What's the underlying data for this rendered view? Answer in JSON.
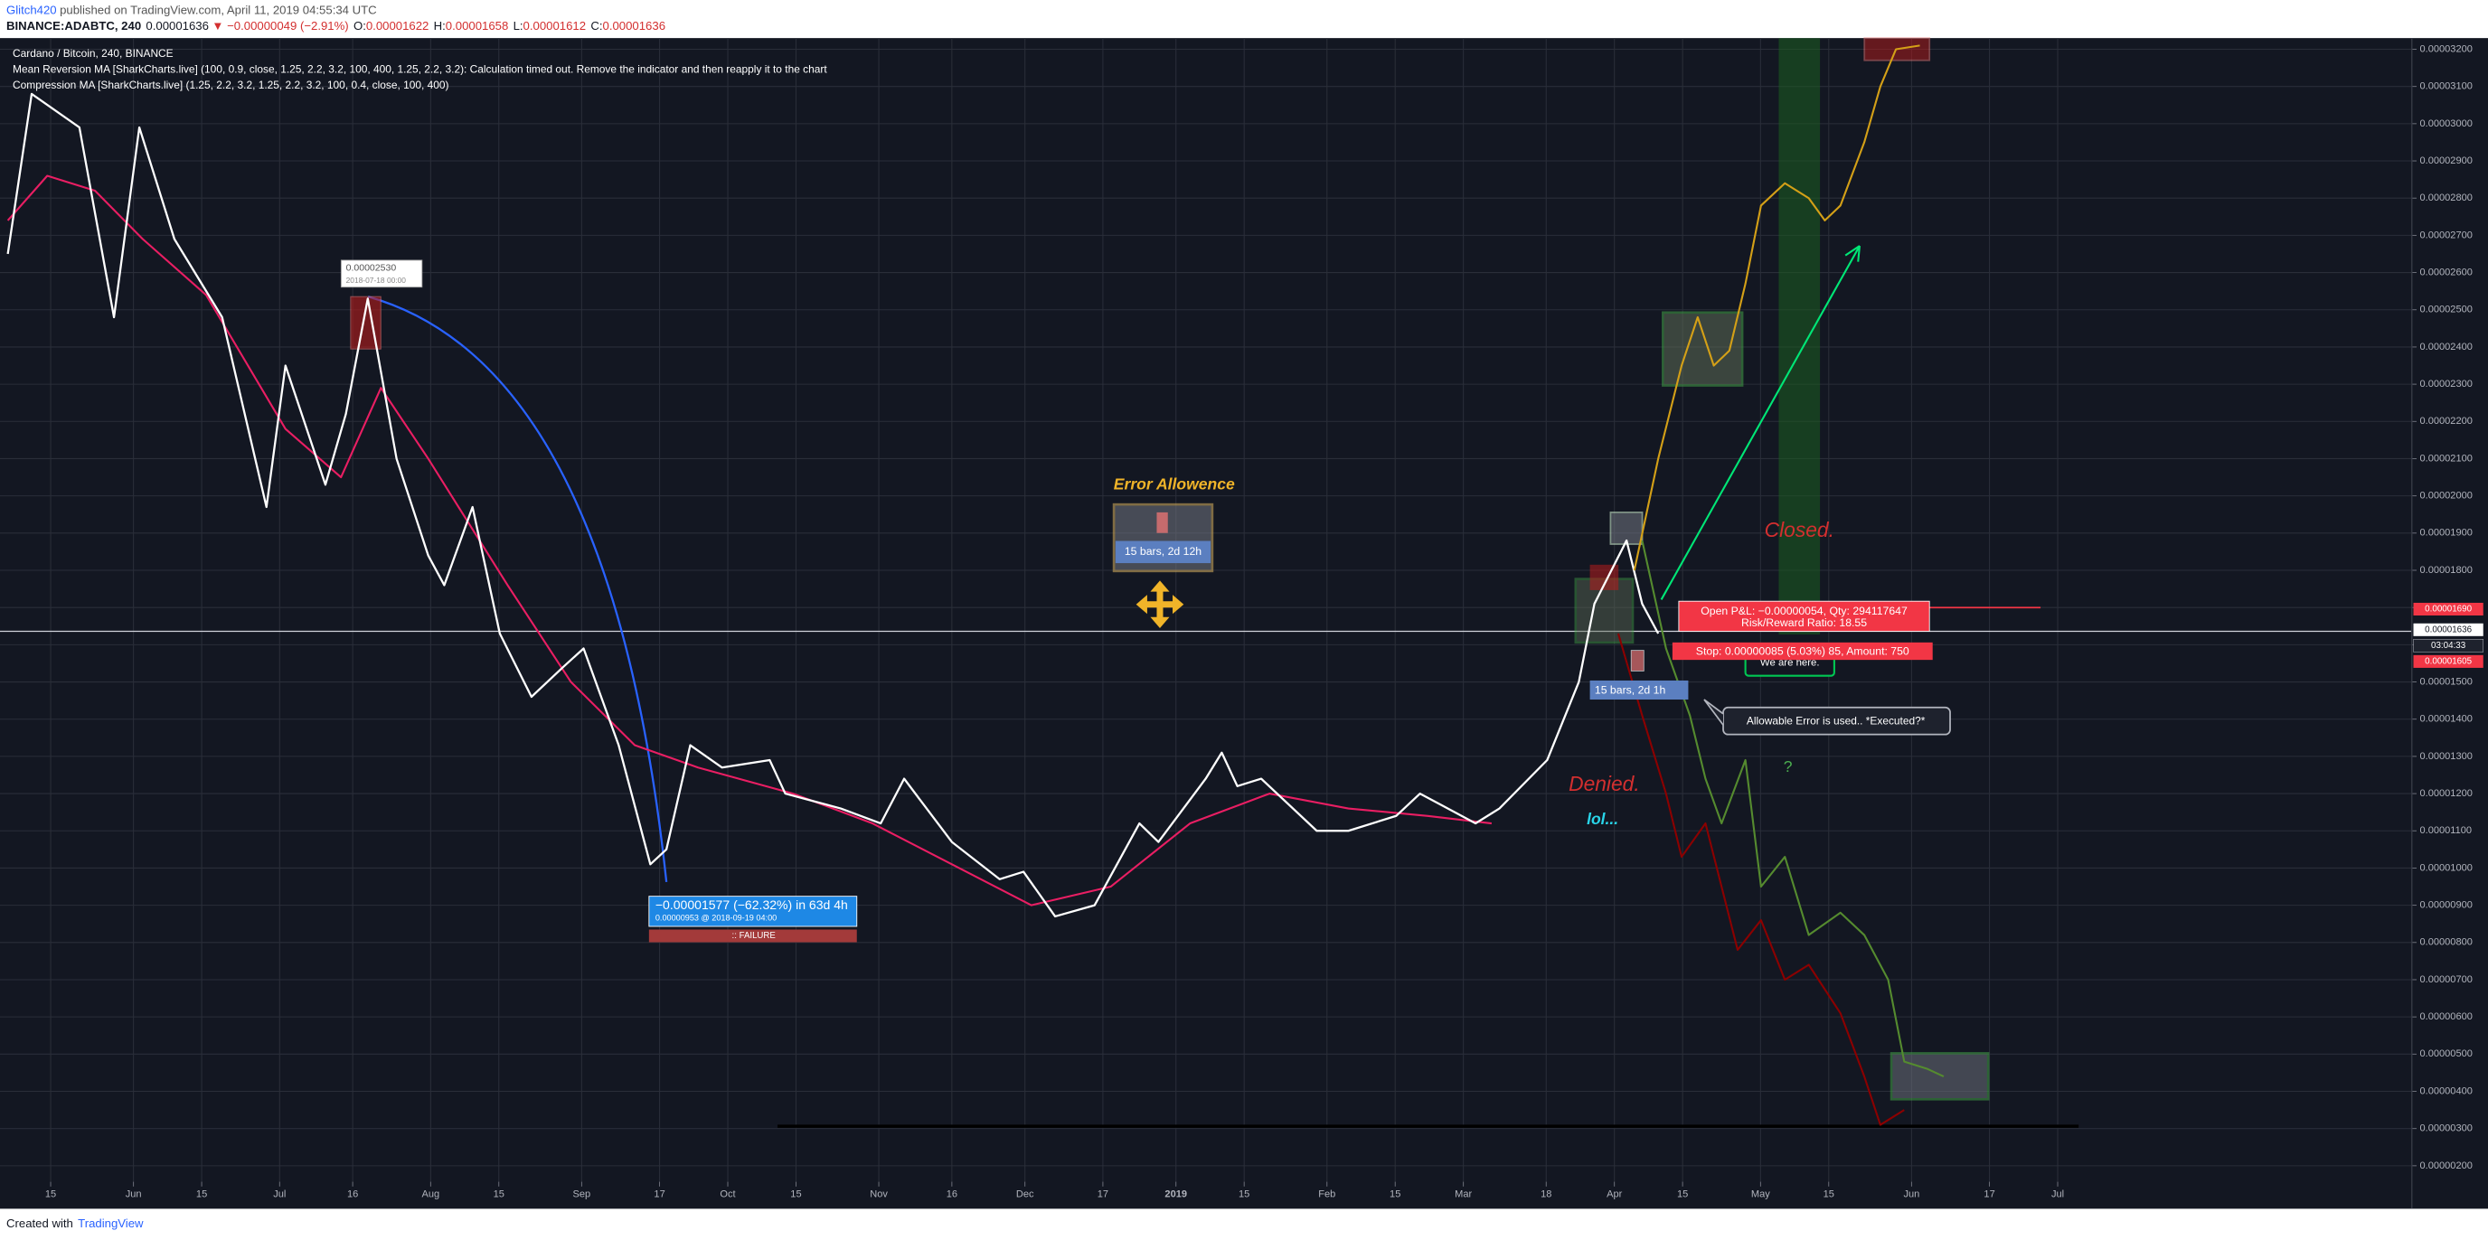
{
  "header": {
    "author": "Glitch420",
    "published": "published on TradingView.com, April 11, 2019 04:55:34 UTC",
    "symbol": "BINANCE:ADABTC, 240",
    "last": "0.00001636",
    "change": "▼ −0.00000049 (−2.91%)",
    "ohlc": [
      {
        "label": "O:",
        "value": "0.00001622"
      },
      {
        "label": "H:",
        "value": "0.00001658"
      },
      {
        "label": "L:",
        "value": "0.00001612"
      },
      {
        "label": "C:",
        "value": "0.00001636"
      }
    ]
  },
  "footer": {
    "text": "Created with",
    "brand": "TradingView"
  },
  "chart_data": {
    "type": "line",
    "legend": [
      "Cardano / Bitcoin, 240, BINANCE",
      "Mean Reversion MA [SharkCharts.live] (100, 0.9, close, 1.25, 2.2, 3.2, 100, 400, 1.25, 2.2, 3.2): Calculation timed out. Remove the indicator and then reapply it to the chart",
      "Compression MA [SharkCharts.live] (1.25, 2.2, 3.2, 1.25, 2.2, 3.2, 100, 0.4, close, 100, 400)"
    ],
    "annotations": {
      "peak_price": "0.00002530",
      "peak_date": "2018-07-18 00:00",
      "measure": "−0.00001577 (−62.32%) in 63d 4h",
      "measure_detail": "0.00000953  @ 2018-09-19  04:00",
      "failure": ":: FAILURE",
      "error_title": "Error Allowence",
      "error_bars": "15 bars, 2d 12h",
      "closed": "Closed.",
      "denied": "Denied.",
      "lol": "lol...",
      "question": "?",
      "pnl": "Open P&L: −0.00000054, Qty: 294117647",
      "rr": "Risk/Reward Ratio: 18.55",
      "stop": "Stop: 0.00000085 (5.03%) 85, Amount: 750",
      "here": "We are here.",
      "bars2": "15 bars, 2d 1h",
      "executed": "Allowable Error is used.. *Executed?*",
      "tag_target": "0.00001690",
      "tag_last": "0.00001636",
      "tag_time": "03:04:33",
      "tag_stop": "0.00001605"
    },
    "grid": true,
    "xlim": [
      3.6,
      498.7
    ],
    "ylim": [
      1.57e-06,
      3.23e-05
    ],
    "xticks": [
      {
        "value": 14,
        "label": "15"
      },
      {
        "value": 31,
        "label": "Jun"
      },
      {
        "value": 45,
        "label": "15"
      },
      {
        "value": 61,
        "label": "Jul"
      },
      {
        "value": 76,
        "label": "16"
      },
      {
        "value": 92,
        "label": "Aug"
      },
      {
        "value": 106,
        "label": "15"
      },
      {
        "value": 123,
        "label": "Sep"
      },
      {
        "value": 139,
        "label": "17"
      },
      {
        "value": 153,
        "label": "Oct"
      },
      {
        "value": 167,
        "label": "15"
      },
      {
        "value": 184,
        "label": "Nov"
      },
      {
        "value": 199,
        "label": "16"
      },
      {
        "value": 214,
        "label": "Dec"
      },
      {
        "value": 230,
        "label": "17"
      },
      {
        "value": 245,
        "label": "2019"
      },
      {
        "value": 259,
        "label": "15"
      },
      {
        "value": 276,
        "label": "Feb"
      },
      {
        "value": 290,
        "label": "15"
      },
      {
        "value": 304,
        "label": "Mar"
      },
      {
        "value": 321,
        "label": "18"
      },
      {
        "value": 335,
        "label": "Apr"
      },
      {
        "value": 349,
        "label": "15"
      },
      {
        "value": 365,
        "label": "May"
      },
      {
        "value": 379,
        "label": "15"
      },
      {
        "value": 396,
        "label": "Jun"
      },
      {
        "value": 412,
        "label": "17"
      },
      {
        "value": 426,
        "label": "Jul"
      }
    ],
    "yticks": [
      {
        "value": 2e-06,
        "label": "0.00000200"
      },
      {
        "value": 3e-06,
        "label": "0.00000300"
      },
      {
        "value": 4e-06,
        "label": "0.00000400"
      },
      {
        "value": 5e-06,
        "label": "0.00000500"
      },
      {
        "value": 6e-06,
        "label": "0.00000600"
      },
      {
        "value": 7e-06,
        "label": "0.00000700"
      },
      {
        "value": 8e-06,
        "label": "0.00000800"
      },
      {
        "value": 9e-06,
        "label": "0.00000900"
      },
      {
        "value": 1e-05,
        "label": "0.00001000"
      },
      {
        "value": 1.1e-05,
        "label": "0.00001100"
      },
      {
        "value": 1.2e-05,
        "label": "0.00001200"
      },
      {
        "value": 1.3e-05,
        "label": "0.00001300"
      },
      {
        "value": 1.4e-05,
        "label": "0.00001400"
      },
      {
        "value": 1.5e-05,
        "label": "0.00001500"
      },
      {
        "value": 1.6e-05,
        "label": "0.00001600"
      },
      {
        "value": 1.7e-05,
        "label": "0.00001700"
      },
      {
        "value": 1.8e-05,
        "label": "0.00001800"
      },
      {
        "value": 1.9e-05,
        "label": "0.00001900"
      },
      {
        "value": 2e-05,
        "label": "0.00002000"
      },
      {
        "value": 2.1e-05,
        "label": "0.00002100"
      },
      {
        "value": 2.2e-05,
        "label": "0.00002200"
      },
      {
        "value": 2.3e-05,
        "label": "0.00002300"
      },
      {
        "value": 2.4e-05,
        "label": "0.00002400"
      },
      {
        "value": 2.5e-05,
        "label": "0.00002500"
      },
      {
        "value": 2.6e-05,
        "label": "0.00002600"
      },
      {
        "value": 2.7e-05,
        "label": "0.00002700"
      },
      {
        "value": 2.8e-05,
        "label": "0.00002800"
      },
      {
        "value": 2.9e-05,
        "label": "0.00002900"
      },
      {
        "value": 3e-05,
        "label": "0.00003000"
      },
      {
        "value": 3.1e-05,
        "label": "0.00003100"
      },
      {
        "value": 3.2e-05,
        "label": "0.00003200"
      }
    ],
    "series": [
      {
        "color": "#e91e63",
        "x": [
          5.2,
          13.3,
          23.1,
          32.9,
          45.9,
          62.2,
          73.6,
          81.8,
          91.5,
          107.8,
          120.8,
          133.9,
          146.9,
          166.4,
          182.7,
          215.3,
          231.6,
          247.9,
          264.2,
          280.4,
          296.7,
          309.8
        ],
        "values": [
          2.74e-05,
          2.86e-05,
          2.82e-05,
          2.69e-05,
          2.54e-05,
          2.18e-05,
          2.05e-05,
          2.29e-05,
          2.1e-05,
          1.76e-05,
          1.5e-05,
          1.33e-05,
          1.27e-05,
          1.2e-05,
          1.12e-05,
          9e-06,
          9.5e-06,
          1.12e-05,
          1.2e-05,
          1.16e-05,
          1.14e-05,
          1.12e-05
        ]
      },
      {
        "color": "#ffffff",
        "x": [
          5.2,
          10.1,
          19.9,
          27,
          32.2,
          39.4,
          49.2,
          58.3,
          62.2,
          70.4,
          74.6,
          79.1,
          85,
          91.5,
          94.8,
          100.6,
          106.2,
          112.7,
          119.2,
          123.4,
          130.6,
          137.1,
          140.4,
          145.3,
          151.8,
          161.6,
          164.8,
          176.2,
          184.4,
          189.2,
          199,
          208.8,
          213.7,
          220.2,
          228.3,
          237.5,
          241.4,
          251.1,
          254.4,
          257.6,
          262.5,
          273.9,
          280.4,
          290.2,
          295.1,
          306.5,
          311.4,
          321.2,
          327.7,
          330.9,
          337.5,
          340.7,
          344
        ],
        "values": [
          2.65e-05,
          3.08e-05,
          2.99e-05,
          2.48e-05,
          2.99e-05,
          2.69e-05,
          2.48e-05,
          1.97e-05,
          2.35e-05,
          2.03e-05,
          2.22e-05,
          2.53e-05,
          2.1e-05,
          1.84e-05,
          1.76e-05,
          1.97e-05,
          1.63e-05,
          1.46e-05,
          1.54e-05,
          1.59e-05,
          1.33e-05,
          1.01e-05,
          1.05e-05,
          1.33e-05,
          1.27e-05,
          1.29e-05,
          1.2e-05,
          1.16e-05,
          1.12e-05,
          1.24e-05,
          1.07e-05,
          9.7e-06,
          9.9e-06,
          8.7e-06,
          9e-06,
          1.12e-05,
          1.07e-05,
          1.24e-05,
          1.31e-05,
          1.22e-05,
          1.24e-05,
          1.1e-05,
          1.1e-05,
          1.14e-05,
          1.2e-05,
          1.12e-05,
          1.16e-05,
          1.29e-05,
          1.5e-05,
          1.71e-05,
          1.88e-05,
          1.71e-05,
          1.63e-05
        ]
      },
      {
        "color": "#d4a017",
        "x": [
          339.1,
          344,
          348.8,
          352.1,
          355.4,
          358.6,
          361.9,
          365.1,
          370,
          374.9,
          378.2,
          381.4,
          386.3,
          389.6,
          392.8,
          397.7
        ],
        "values": [
          1.8e-05,
          2.1e-05,
          2.35e-05,
          2.48e-05,
          2.35e-05,
          2.39e-05,
          2.57e-05,
          2.78e-05,
          2.84e-05,
          2.8e-05,
          2.74e-05,
          2.78e-05,
          2.95e-05,
          3.1e-05,
          3.2e-05,
          3.21e-05
        ]
      },
      {
        "color": "#558b2f",
        "x": [
          340.7,
          345.6,
          350.5,
          353.7,
          357,
          361.9,
          365.1,
          370,
          374.9,
          381.4,
          386.3,
          391.2,
          394.5,
          399.3,
          402.6
        ],
        "values": [
          1.88e-05,
          1.59e-05,
          1.41e-05,
          1.24e-05,
          1.12e-05,
          1.29e-05,
          9.5e-06,
          1.03e-05,
          8.2e-06,
          8.8e-06,
          8.2e-06,
          7e-06,
          4.8e-06,
          4.6e-06,
          4.4e-06
        ]
      },
      {
        "color": "#8b0000",
        "x": [
          335.8,
          340.7,
          345.6,
          348.8,
          353.7,
          357,
          360.3,
          365.1,
          370,
          374.9,
          381.4,
          386.3,
          389.6,
          394.5
        ],
        "values": [
          1.63e-05,
          1.41e-05,
          1.2e-05,
          1.03e-05,
          1.12e-05,
          9.5e-06,
          7.8e-06,
          8.6e-06,
          7e-06,
          7.4e-06,
          6.1e-06,
          4.4e-06,
          3.1e-06,
          3.5e-06
        ]
      }
    ]
  }
}
